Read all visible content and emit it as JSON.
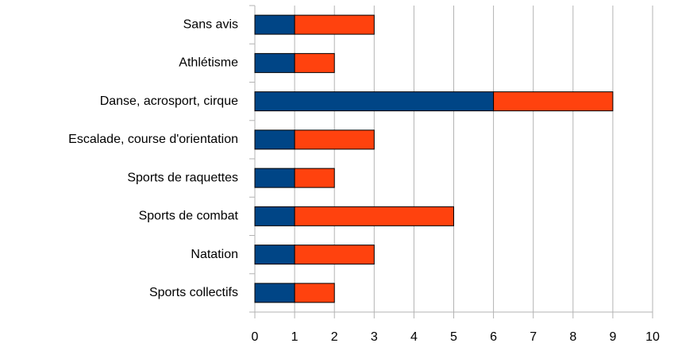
{
  "chart_data": {
    "type": "bar",
    "orientation": "horizontal",
    "stacked": true,
    "categories": [
      "Sans avis",
      "Athlétisme",
      "Danse, acrosport, cirque",
      "Escalade, course d'orientation",
      "Sports de raquettes",
      "Sports de combat",
      "Natation",
      "Sports collectifs"
    ],
    "series": [
      {
        "color": "#004586",
        "values": [
          1,
          1,
          6,
          1,
          1,
          1,
          1,
          1
        ]
      },
      {
        "color": "#ff420e",
        "values": [
          2,
          1,
          3,
          2,
          1,
          4,
          2,
          1
        ]
      }
    ],
    "xlim": [
      0,
      10
    ],
    "xticks": [
      0,
      1,
      2,
      3,
      4,
      5,
      6,
      7,
      8,
      9,
      10
    ],
    "grid": true
  }
}
